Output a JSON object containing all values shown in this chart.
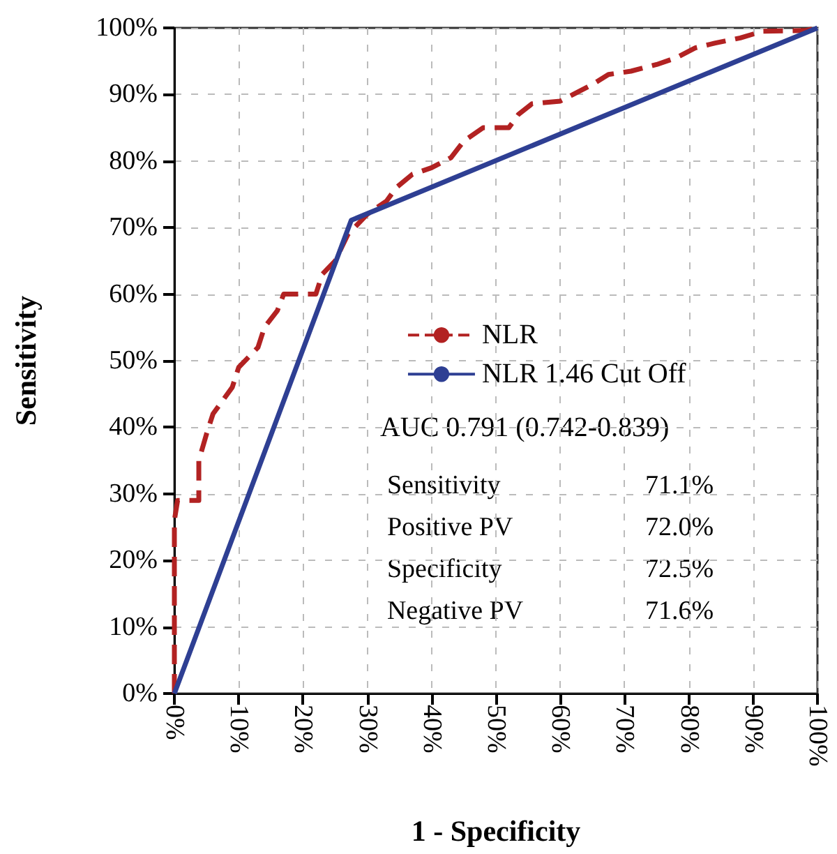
{
  "chart_data": {
    "type": "line",
    "xlabel": "1 - Specificity",
    "ylabel": "Sensitivity",
    "xlim": [
      0,
      100
    ],
    "ylim": [
      0,
      100
    ],
    "xticks": [
      {
        "value": 0,
        "label": "0%"
      },
      {
        "value": 10,
        "label": "10%"
      },
      {
        "value": 20,
        "label": "20%"
      },
      {
        "value": 30,
        "label": "30%"
      },
      {
        "value": 40,
        "label": "40%"
      },
      {
        "value": 50,
        "label": "50%"
      },
      {
        "value": 60,
        "label": "60%"
      },
      {
        "value": 70,
        "label": "70%"
      },
      {
        "value": 80,
        "label": "80%"
      },
      {
        "value": 90,
        "label": "90%"
      },
      {
        "value": 100,
        "label": "100%"
      }
    ],
    "yticks": [
      {
        "value": 0,
        "label": "0%"
      },
      {
        "value": 10,
        "label": "10%"
      },
      {
        "value": 20,
        "label": "20%"
      },
      {
        "value": 30,
        "label": "30%"
      },
      {
        "value": 40,
        "label": "40%"
      },
      {
        "value": 50,
        "label": "50%"
      },
      {
        "value": 60,
        "label": "60%"
      },
      {
        "value": 70,
        "label": "70%"
      },
      {
        "value": 80,
        "label": "80%"
      },
      {
        "value": 90,
        "label": "90%"
      },
      {
        "value": 100,
        "label": "100%"
      }
    ],
    "grid": true,
    "legend": "center",
    "marker": "none",
    "series": [
      {
        "name": "NLR",
        "color": "#b22222",
        "line_style": "dashed",
        "x": [
          0,
          0,
          0.5,
          3.8,
          3.8,
          5,
          6,
          9,
          10,
          13,
          14,
          16,
          17,
          22,
          23,
          25,
          27,
          30,
          33,
          34.5,
          37,
          40,
          43,
          45,
          48,
          52,
          53.5,
          55.6,
          60,
          62,
          65,
          67.5,
          71,
          75,
          78,
          81,
          84,
          88,
          91.5,
          98,
          100
        ],
        "values": [
          0,
          26,
          29,
          29,
          35,
          39,
          42,
          46,
          49,
          52,
          55,
          57.5,
          60,
          60,
          63,
          65,
          69,
          72,
          74,
          76,
          78,
          79,
          80.5,
          83,
          85,
          85,
          87,
          88.6,
          89,
          90,
          91.5,
          93,
          93.5,
          94.5,
          95.5,
          97,
          97.7,
          98.5,
          99.5,
          99.6,
          100
        ]
      },
      {
        "name": "NLR 1.46 Cut Off",
        "color": "#2e3f93",
        "line_style": "solid",
        "x": [
          0,
          27.5,
          100
        ],
        "values": [
          0,
          71.1,
          100
        ]
      }
    ],
    "annotations": [
      "AUC 0.791 (0.742-0.839)",
      "Sensitivity",
      "71.1%",
      "Positive PV",
      "72.0%",
      "Specificity",
      "72.5%",
      "Negative PV",
      "71.6%"
    ]
  }
}
